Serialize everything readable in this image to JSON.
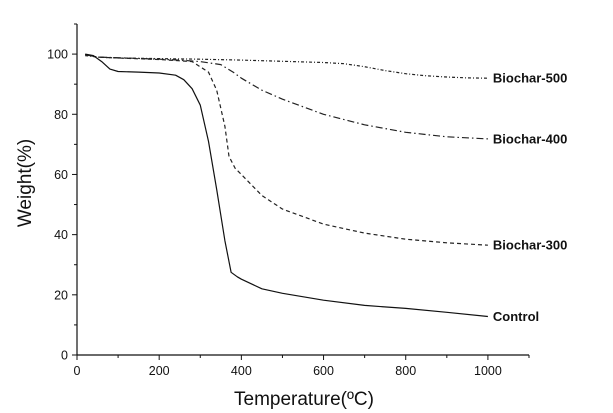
{
  "chart_data": {
    "type": "line",
    "title": "",
    "xlabel": "Temperature(ºC)",
    "ylabel": "Weight(%)",
    "xlim": [
      0,
      1100
    ],
    "ylim": [
      0,
      110
    ],
    "xticks": [
      0,
      200,
      400,
      600,
      800,
      1000
    ],
    "yticks": [
      0,
      20,
      40,
      60,
      80,
      100
    ],
    "grid": false,
    "legend": "labels at line ends (right)",
    "series": [
      {
        "name": "Biochar-500",
        "dash": "dashdot-fine",
        "color": "#222222",
        "x": [
          20,
          50,
          100,
          200,
          300,
          400,
          500,
          600,
          650,
          700,
          750,
          800,
          850,
          900,
          950,
          1000
        ],
        "y": [
          99.5,
          99.0,
          98.7,
          98.5,
          98.3,
          98.0,
          97.6,
          97.2,
          96.8,
          95.8,
          94.5,
          93.5,
          92.8,
          92.4,
          92.1,
          92.0
        ]
      },
      {
        "name": "Biochar-400",
        "dash": "dashdot",
        "color": "#222222",
        "x": [
          20,
          50,
          100,
          200,
          250,
          300,
          350,
          380,
          400,
          450,
          500,
          600,
          700,
          800,
          900,
          1000
        ],
        "y": [
          99.8,
          99.0,
          98.8,
          98.3,
          98.0,
          97.5,
          96.5,
          94.0,
          92.0,
          88.0,
          85.0,
          80.0,
          76.5,
          74.0,
          72.5,
          71.8
        ]
      },
      {
        "name": "Biochar-300",
        "dash": "dashed",
        "color": "#222222",
        "x": [
          20,
          50,
          100,
          200,
          280,
          320,
          340,
          360,
          370,
          385,
          400,
          450,
          500,
          600,
          700,
          800,
          900,
          1000
        ],
        "y": [
          99.8,
          99.0,
          98.7,
          98.2,
          97.5,
          94.0,
          88.0,
          76.0,
          66.0,
          62.0,
          60.0,
          53.0,
          48.5,
          43.5,
          40.5,
          38.5,
          37.3,
          36.5
        ]
      },
      {
        "name": "Control",
        "dash": "solid",
        "color": "#111111",
        "x": [
          20,
          40,
          60,
          80,
          100,
          150,
          200,
          240,
          260,
          280,
          300,
          320,
          340,
          360,
          375,
          390,
          400,
          450,
          500,
          600,
          700,
          800,
          900,
          1000
        ],
        "y": [
          100,
          99.5,
          97.5,
          95.0,
          94.2,
          94.0,
          93.7,
          93.0,
          91.5,
          88.5,
          83.0,
          71.0,
          55.0,
          38.0,
          27.5,
          26.0,
          25.2,
          22.0,
          20.5,
          18.2,
          16.5,
          15.5,
          14.2,
          12.8
        ]
      }
    ]
  }
}
